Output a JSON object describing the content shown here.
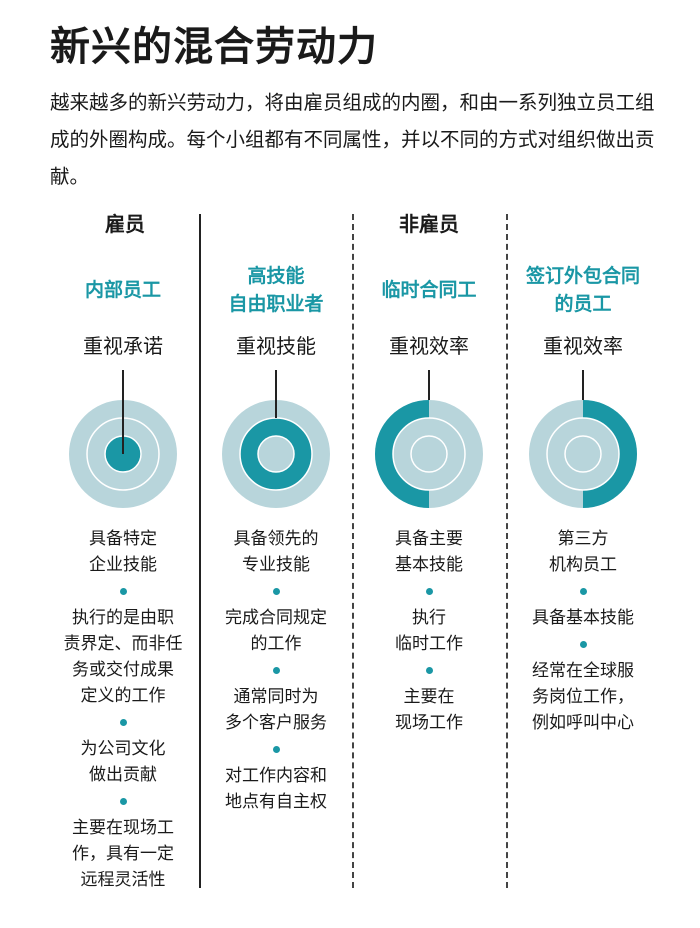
{
  "title": "新兴的混合劳动力",
  "intro": "越来越多的新兴劳动力，将由雇员组成的内圈，和由一系列独立员工组成的外圈构成。每个小组都有不同属性，并以不同的方式对组织做出贡献。",
  "groups": {
    "employee": "雇员",
    "non_employee": "非雇员"
  },
  "colors": {
    "accent": "#1a97a5",
    "ring_light": "#b8d5db",
    "ring_stroke": "#ffffff",
    "text": "#1a1a1a"
  },
  "columns": [
    {
      "title": "内部员工",
      "focus": "重视承诺",
      "highlight": "inner-dot",
      "items": [
        "具备特定\n企业技能",
        "执行的是由职\n责界定、而非任\n务或交付成果\n定义的工作",
        "为公司文化\n做出贡献",
        "主要在现场工\n作，具有一定\n远程灵活性"
      ]
    },
    {
      "title": "高技能\n自由职业者",
      "focus": "重视技能",
      "highlight": "middle-ring",
      "items": [
        "具备领先的\n专业技能",
        "完成合同规定\n的工作",
        "通常同时为\n多个客户服务",
        "对工作内容和\n地点有自主权"
      ]
    },
    {
      "title": "临时合同工",
      "focus": "重视效率",
      "highlight": "outer-left-half",
      "items": [
        "具备主要\n基本技能",
        "执行\n临时工作",
        "主要在\n现场工作"
      ]
    },
    {
      "title": "签订外包合同\n的员工",
      "focus": "重视效率",
      "highlight": "outer-right-half",
      "items": [
        "第三方\n机构员工",
        "具备基本技能",
        "经常在全球服\n务岗位工作，\n例如呼叫中心"
      ]
    }
  ]
}
